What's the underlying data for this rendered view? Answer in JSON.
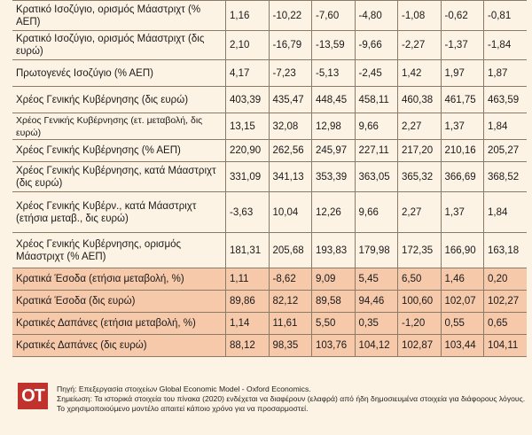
{
  "rows": [
    {
      "label": "Κρατικό Ισοζύγιο, ορισμός Μάαστριχτ (% ΑΕΠ)",
      "values": [
        "1,16",
        "-10,22",
        "-7,60",
        "-4,80",
        "-1,08",
        "-0,62",
        "-0,81"
      ]
    },
    {
      "label": "Κρατικό Ισοζύγιο, ορισμός Μάαστριχτ (δις ευρώ)",
      "values": [
        "2,10",
        "-16,79",
        "-13,59",
        "-9,66",
        "-2,27",
        "-1,37",
        "-1,84"
      ]
    },
    {
      "label": "Πρωτογενές Ισοζύγιο (% ΑΕΠ)",
      "values": [
        "4,17",
        "-7,23",
        "-5,13",
        "-2,45",
        "1,42",
        "1,97",
        "1,87"
      ]
    },
    {
      "label": "Χρέος Γενικής Κυβέρνησης (δις ευρώ)",
      "values": [
        "403,39",
        "435,47",
        "448,45",
        "458,11",
        "460,38",
        "461,75",
        "463,59"
      ]
    },
    {
      "label": "Χρέος Γενικής Κυβέρνησης (ετ. μεταβολή, δις ευρώ)",
      "values": [
        "13,15",
        "32,08",
        "12,98",
        "9,66",
        "2,27",
        "1,37",
        "1,84"
      ]
    },
    {
      "label": "Χρέος Γενικής Κυβέρνησης (% ΑΕΠ)",
      "values": [
        "220,90",
        "262,56",
        "245,97",
        "227,11",
        "217,20",
        "210,16",
        "205,27"
      ]
    },
    {
      "label": "Χρέος Γενικής Κυβέρνησης, κατά Μάαστριχτ (δις ευρώ)",
      "values": [
        "331,09",
        "341,13",
        "353,39",
        "363,05",
        "365,32",
        "366,69",
        "368,52"
      ]
    },
    {
      "label": "Χρέος Γενικής Κυβέρν., κατά Μάαστριχτ (ετήσια μεταβ., δις ευρώ)",
      "values": [
        "-3,63",
        "10,04",
        "12,26",
        "9,66",
        "2,27",
        "1,37",
        "1,84"
      ]
    },
    {
      "label": "Χρέος Γενικής Κυβέρνησης, ορισμός Μάαστριχτ (% ΑΕΠ)",
      "values": [
        "181,31",
        "205,68",
        "193,83",
        "179,98",
        "172,35",
        "166,90",
        "163,18"
      ]
    },
    {
      "label": "Κρατικά Έσοδα (ετήσια μεταβολή, %)",
      "values": [
        "1,11",
        "-8,62",
        "9,09",
        "5,45",
        "6,50",
        "1,46",
        "0,20"
      ]
    },
    {
      "label": "Κρατικά Έσοδα (δις ευρώ)",
      "values": [
        "89,86",
        "82,12",
        "89,58",
        "94,46",
        "100,60",
        "102,07",
        "102,27"
      ]
    },
    {
      "label": "Κρατικές Δαπάνες (ετήσια μεταβολή, %)",
      "values": [
        "1,14",
        "11,61",
        "5,50",
        "0,35",
        "-1,20",
        "0,55",
        "0,65"
      ]
    },
    {
      "label": "Κρατικές Δαπάνες (δις ευρώ)",
      "values": [
        "88,12",
        "98,35",
        "103,76",
        "104,12",
        "102,87",
        "103,44",
        "104,11"
      ]
    }
  ],
  "footer": {
    "logo": "OT",
    "source": "Πηγή: Επεξεργασία στοιχείων Global Economic Model - Oxford Economics.",
    "note": "Σημείωση: Τα ιστορικά στοιχεία του πίνακα (2020) ενδέχεται να διαφέρουν (ελαφρά) από ήδη δημοσιευμένα στοιχεία για διάφορους λόγους. Το χρησιμοποιούμενο μοντέλο απαιτεί κάποιο χρόνο για να προσαρμοστεί."
  },
  "colors": {
    "background": "#fdf3e4",
    "band": "#f6c9ab",
    "logo": "#c0322b"
  }
}
